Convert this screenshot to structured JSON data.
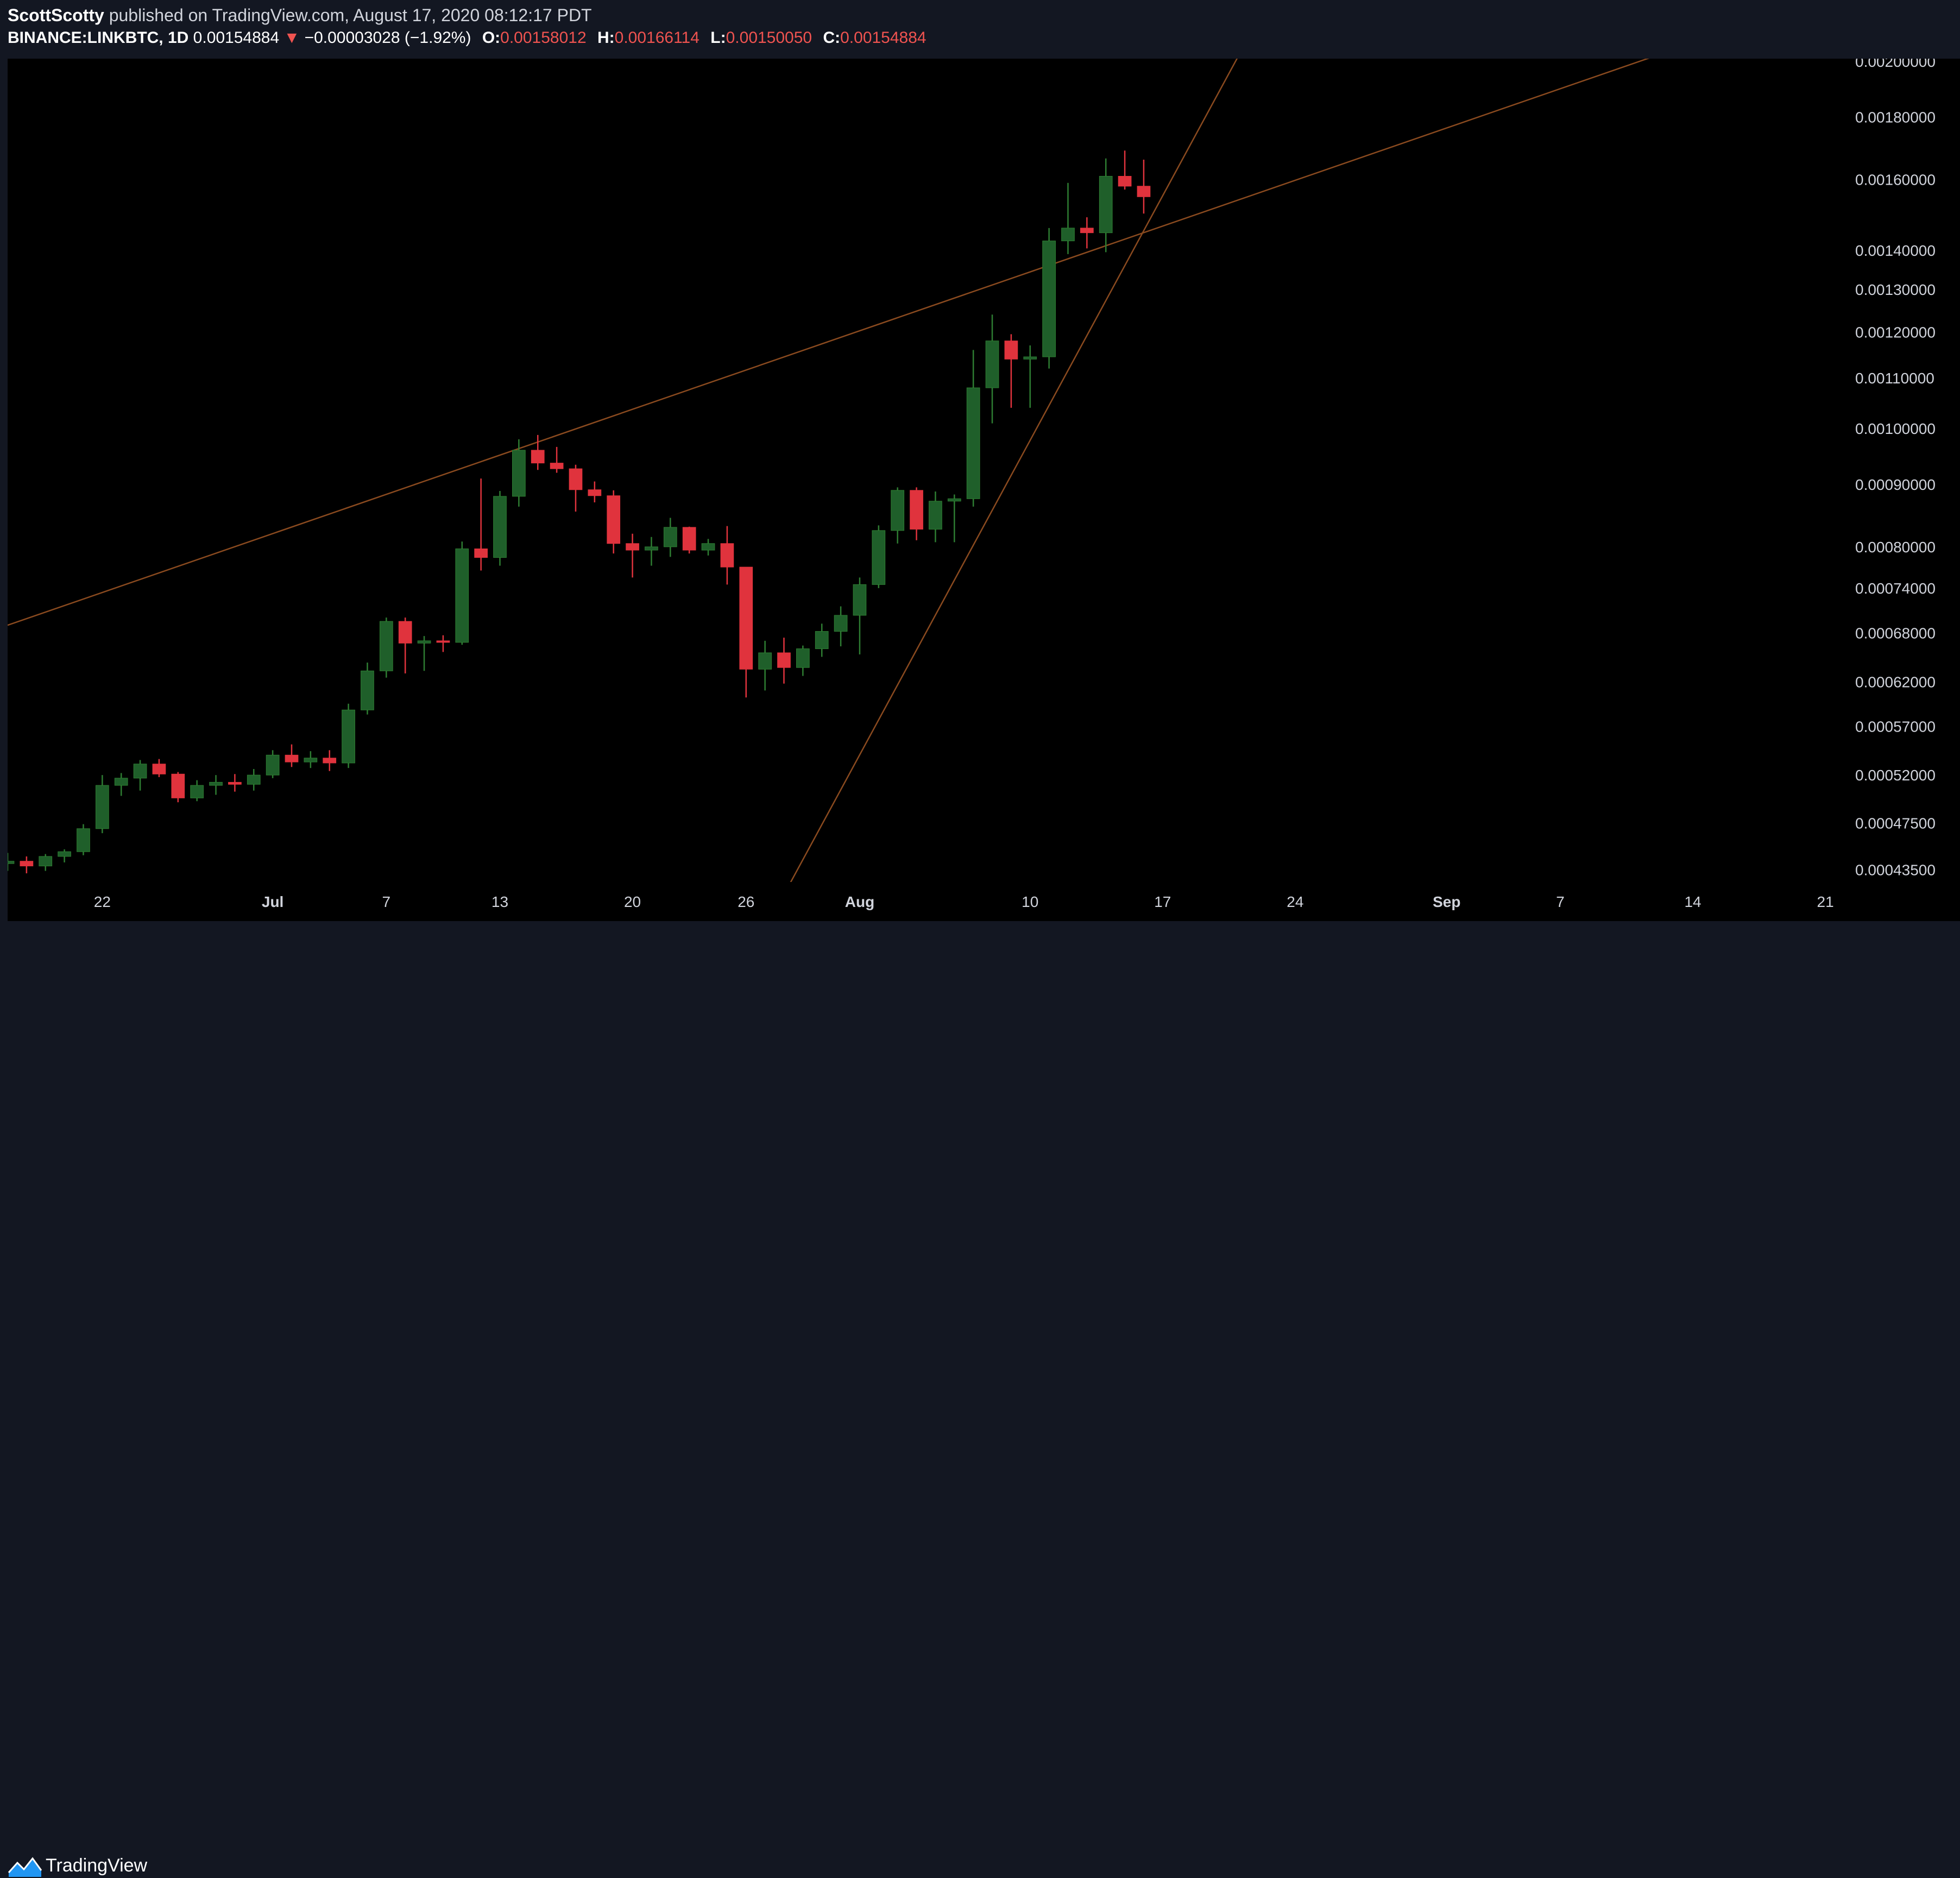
{
  "header": {
    "author": "ScottScotty",
    "published_text": "published on TradingView.com, August 17, 2020 08:12:17 PDT",
    "symbol": "BINANCE:LINKBTC, 1D",
    "last_price": "0.00154884",
    "change": "−0.00003028 (−1.92%)",
    "open_label": "O:",
    "open": "0.00158012",
    "high_label": "H:",
    "high": "0.00166114",
    "low_label": "L:",
    "low": "0.00150050",
    "close_label": "C:",
    "close": "0.00154884"
  },
  "footer": {
    "brand": "TradingView"
  },
  "colors": {
    "up": "#1f5f2a",
    "up_wick": "#2e7d32",
    "down": "#e0333d",
    "trendline": "#8a4a1f",
    "axis_text": "#d1d4dc",
    "background": "#000000"
  },
  "chart_data": {
    "type": "candlestick",
    "symbol": "BINANCE:LINKBTC",
    "interval": "1D",
    "y_scale": "log",
    "ylim": [
      0.000425,
      0.00201
    ],
    "price_ticks": [
      {
        "value": 0.002,
        "label": "0.00200000"
      },
      {
        "value": 0.0018,
        "label": "0.00180000"
      },
      {
        "value": 0.0016,
        "label": "0.00160000"
      },
      {
        "value": 0.0014,
        "label": "0.00140000"
      },
      {
        "value": 0.0013,
        "label": "0.00130000"
      },
      {
        "value": 0.0012,
        "label": "0.00120000"
      },
      {
        "value": 0.0011,
        "label": "0.00110000"
      },
      {
        "value": 0.001,
        "label": "0.00100000"
      },
      {
        "value": 0.0009,
        "label": "0.00090000"
      },
      {
        "value": 0.0008,
        "label": "0.00080000"
      },
      {
        "value": 0.00074,
        "label": "0.00074000"
      },
      {
        "value": 0.00068,
        "label": "0.00068000"
      },
      {
        "value": 0.00062,
        "label": "0.00062000"
      },
      {
        "value": 0.00057,
        "label": "0.00057000"
      },
      {
        "value": 0.00052,
        "label": "0.00052000"
      },
      {
        "value": 0.000475,
        "label": "0.00047500"
      },
      {
        "value": 0.000435,
        "label": "0.00043500"
      }
    ],
    "xlim": [
      "2020-06-17",
      "2020-09-22"
    ],
    "time_ticks": [
      {
        "date": "2020-06-22",
        "label": "22"
      },
      {
        "date": "2020-07-01",
        "label": "Jul"
      },
      {
        "date": "2020-07-07",
        "label": "7"
      },
      {
        "date": "2020-07-13",
        "label": "13"
      },
      {
        "date": "2020-07-20",
        "label": "20"
      },
      {
        "date": "2020-07-26",
        "label": "26"
      },
      {
        "date": "2020-08-01",
        "label": "Aug"
      },
      {
        "date": "2020-08-10",
        "label": "10"
      },
      {
        "date": "2020-08-17",
        "label": "17"
      },
      {
        "date": "2020-08-24",
        "label": "24"
      },
      {
        "date": "2020-09-01",
        "label": "Sep"
      },
      {
        "date": "2020-09-07",
        "label": "7"
      },
      {
        "date": "2020-09-14",
        "label": "14"
      },
      {
        "date": "2020-09-21",
        "label": "21"
      }
    ],
    "candles": [
      {
        "date": "2020-06-17",
        "o": 0.00044,
        "h": 0.000449,
        "l": 0.000434,
        "c": 0.000442
      },
      {
        "date": "2020-06-18",
        "o": 0.000442,
        "h": 0.000446,
        "l": 0.000432,
        "c": 0.000438
      },
      {
        "date": "2020-06-19",
        "o": 0.000438,
        "h": 0.000448,
        "l": 0.000434,
        "c": 0.000446
      },
      {
        "date": "2020-06-20",
        "o": 0.000446,
        "h": 0.000452,
        "l": 0.000441,
        "c": 0.00045
      },
      {
        "date": "2020-06-21",
        "o": 0.00045,
        "h": 0.000474,
        "l": 0.000447,
        "c": 0.00047
      },
      {
        "date": "2020-06-22",
        "o": 0.00047,
        "h": 0.00052,
        "l": 0.000466,
        "c": 0.00051
      },
      {
        "date": "2020-06-23",
        "o": 0.00051,
        "h": 0.000522,
        "l": 0.0005,
        "c": 0.000517
      },
      {
        "date": "2020-06-24",
        "o": 0.000517,
        "h": 0.000535,
        "l": 0.000505,
        "c": 0.000531
      },
      {
        "date": "2020-06-25",
        "o": 0.000531,
        "h": 0.000536,
        "l": 0.000518,
        "c": 0.000521
      },
      {
        "date": "2020-06-26",
        "o": 0.000521,
        "h": 0.000523,
        "l": 0.000494,
        "c": 0.000498
      },
      {
        "date": "2020-06-27",
        "o": 0.000498,
        "h": 0.000515,
        "l": 0.000495,
        "c": 0.00051
      },
      {
        "date": "2020-06-28",
        "o": 0.00051,
        "h": 0.00052,
        "l": 0.000501,
        "c": 0.000513
      },
      {
        "date": "2020-06-29",
        "o": 0.000513,
        "h": 0.000521,
        "l": 0.000504,
        "c": 0.000511
      },
      {
        "date": "2020-06-30",
        "o": 0.000511,
        "h": 0.000526,
        "l": 0.000505,
        "c": 0.00052
      },
      {
        "date": "2020-07-01",
        "o": 0.00052,
        "h": 0.000545,
        "l": 0.000517,
        "c": 0.00054
      },
      {
        "date": "2020-07-02",
        "o": 0.00054,
        "h": 0.000551,
        "l": 0.000528,
        "c": 0.000533
      },
      {
        "date": "2020-07-03",
        "o": 0.000533,
        "h": 0.000544,
        "l": 0.000527,
        "c": 0.000537
      },
      {
        "date": "2020-07-04",
        "o": 0.000537,
        "h": 0.000545,
        "l": 0.000524,
        "c": 0.000532
      },
      {
        "date": "2020-07-05",
        "o": 0.000532,
        "h": 0.000595,
        "l": 0.000527,
        "c": 0.000588
      },
      {
        "date": "2020-07-06",
        "o": 0.000588,
        "h": 0.000643,
        "l": 0.000583,
        "c": 0.000633
      },
      {
        "date": "2020-07-07",
        "o": 0.000633,
        "h": 0.0007,
        "l": 0.000625,
        "c": 0.000695
      },
      {
        "date": "2020-07-08",
        "o": 0.000695,
        "h": 0.0007,
        "l": 0.00063,
        "c": 0.000667
      },
      {
        "date": "2020-07-09",
        "o": 0.000667,
        "h": 0.000676,
        "l": 0.000633,
        "c": 0.00067
      },
      {
        "date": "2020-07-10",
        "o": 0.00067,
        "h": 0.000677,
        "l": 0.000656,
        "c": 0.000668
      },
      {
        "date": "2020-07-11",
        "o": 0.000668,
        "h": 0.000808,
        "l": 0.000665,
        "c": 0.000797
      },
      {
        "date": "2020-07-12",
        "o": 0.000797,
        "h": 0.00091,
        "l": 0.000765,
        "c": 0.000784
      },
      {
        "date": "2020-07-13",
        "o": 0.000784,
        "h": 0.000889,
        "l": 0.000772,
        "c": 0.00088
      },
      {
        "date": "2020-07-14",
        "o": 0.00088,
        "h": 0.00098,
        "l": 0.000863,
        "c": 0.00096
      },
      {
        "date": "2020-07-15",
        "o": 0.00096,
        "h": 0.000988,
        "l": 0.000925,
        "c": 0.000937
      },
      {
        "date": "2020-07-16",
        "o": 0.000937,
        "h": 0.000966,
        "l": 0.00092,
        "c": 0.000927
      },
      {
        "date": "2020-07-17",
        "o": 0.000927,
        "h": 0.000934,
        "l": 0.000855,
        "c": 0.000891
      },
      {
        "date": "2020-07-18",
        "o": 0.000891,
        "h": 0.000905,
        "l": 0.00087,
        "c": 0.000881
      },
      {
        "date": "2020-07-19",
        "o": 0.000881,
        "h": 0.00089,
        "l": 0.00079,
        "c": 0.000805
      },
      {
        "date": "2020-07-20",
        "o": 0.000805,
        "h": 0.00082,
        "l": 0.000755,
        "c": 0.000795
      },
      {
        "date": "2020-07-21",
        "o": 0.000795,
        "h": 0.000815,
        "l": 0.000772,
        "c": 0.0008
      },
      {
        "date": "2020-07-22",
        "o": 0.0008,
        "h": 0.000845,
        "l": 0.000785,
        "c": 0.00083
      },
      {
        "date": "2020-07-23",
        "o": 0.00083,
        "h": 0.000831,
        "l": 0.00079,
        "c": 0.000795
      },
      {
        "date": "2020-07-24",
        "o": 0.000795,
        "h": 0.000812,
        "l": 0.000787,
        "c": 0.000805
      },
      {
        "date": "2020-07-25",
        "o": 0.000805,
        "h": 0.000832,
        "l": 0.000745,
        "c": 0.00077
      },
      {
        "date": "2020-07-26",
        "o": 0.00077,
        "h": 0.00077,
        "l": 0.000602,
        "c": 0.000635
      },
      {
        "date": "2020-07-27",
        "o": 0.000635,
        "h": 0.00067,
        "l": 0.00061,
        "c": 0.000655
      },
      {
        "date": "2020-07-28",
        "o": 0.000655,
        "h": 0.000674,
        "l": 0.000618,
        "c": 0.000637
      },
      {
        "date": "2020-07-29",
        "o": 0.000637,
        "h": 0.000664,
        "l": 0.000627,
        "c": 0.00066
      },
      {
        "date": "2020-07-30",
        "o": 0.00066,
        "h": 0.000692,
        "l": 0.00065,
        "c": 0.000682
      },
      {
        "date": "2020-07-31",
        "o": 0.000682,
        "h": 0.000715,
        "l": 0.000663,
        "c": 0.000703
      },
      {
        "date": "2020-08-01",
        "o": 0.000703,
        "h": 0.000755,
        "l": 0.000653,
        "c": 0.000745
      },
      {
        "date": "2020-08-02",
        "o": 0.000745,
        "h": 0.000833,
        "l": 0.00074,
        "c": 0.000825
      },
      {
        "date": "2020-08-03",
        "o": 0.000825,
        "h": 0.000895,
        "l": 0.000805,
        "c": 0.00089
      },
      {
        "date": "2020-08-04",
        "o": 0.00089,
        "h": 0.000895,
        "l": 0.00081,
        "c": 0.000827
      },
      {
        "date": "2020-08-05",
        "o": 0.000827,
        "h": 0.000888,
        "l": 0.000807,
        "c": 0.000872
      },
      {
        "date": "2020-08-06",
        "o": 0.000872,
        "h": 0.000883,
        "l": 0.000807,
        "c": 0.000876
      },
      {
        "date": "2020-08-07",
        "o": 0.000876,
        "h": 0.00116,
        "l": 0.000863,
        "c": 0.00108
      },
      {
        "date": "2020-08-08",
        "o": 0.00108,
        "h": 0.00124,
        "l": 0.00101,
        "c": 0.00118
      },
      {
        "date": "2020-08-09",
        "o": 0.00118,
        "h": 0.001195,
        "l": 0.00104,
        "c": 0.00114
      },
      {
        "date": "2020-08-10",
        "o": 0.00114,
        "h": 0.00117,
        "l": 0.00104,
        "c": 0.001145
      },
      {
        "date": "2020-08-11",
        "o": 0.001145,
        "h": 0.00146,
        "l": 0.00112,
        "c": 0.001425
      },
      {
        "date": "2020-08-12",
        "o": 0.001425,
        "h": 0.00159,
        "l": 0.00139,
        "c": 0.00146
      },
      {
        "date": "2020-08-13",
        "o": 0.00146,
        "h": 0.00149,
        "l": 0.001405,
        "c": 0.001447
      },
      {
        "date": "2020-08-14",
        "o": 0.001447,
        "h": 0.001665,
        "l": 0.001395,
        "c": 0.00161
      },
      {
        "date": "2020-08-15",
        "o": 0.00161,
        "h": 0.00169,
        "l": 0.00157,
        "c": 0.00158
      },
      {
        "date": "2020-08-16",
        "o": 0.00158012,
        "h": 0.00166114,
        "l": 0.0015005,
        "c": 0.00154884
      }
    ],
    "trendlines": [
      {
        "name": "resistance",
        "points": [
          {
            "date": "2020-06-17",
            "value": 0.00069
          },
          {
            "date": "2020-09-12",
            "value": 0.00202
          }
        ]
      },
      {
        "name": "support",
        "points": [
          {
            "date": "2020-07-28",
            "value": 0.000415
          },
          {
            "date": "2020-08-21",
            "value": 0.00202
          }
        ]
      }
    ]
  }
}
